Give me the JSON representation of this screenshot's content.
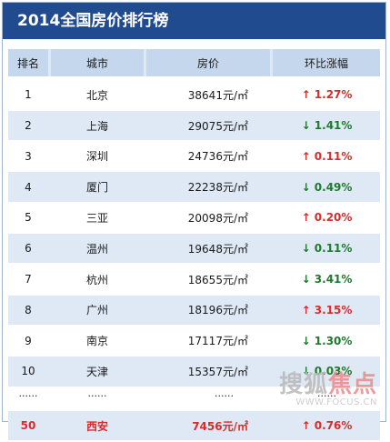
{
  "header": {
    "title": "2014全国房价排行榜"
  },
  "table": {
    "columns": [
      "排名",
      "城市",
      "房价",
      "环比涨幅"
    ],
    "rows": [
      {
        "rank": "1",
        "city": "北京",
        "price": "38641元/㎡",
        "change": "↑ 1.27%",
        "direction": "up"
      },
      {
        "rank": "2",
        "city": "上海",
        "price": "29075元/㎡",
        "change": "↓ 1.41%",
        "direction": "down"
      },
      {
        "rank": "3",
        "city": "深圳",
        "price": "24736元/㎡",
        "change": "↑ 0.11%",
        "direction": "up"
      },
      {
        "rank": "4",
        "city": "厦门",
        "price": "22238元/㎡",
        "change": "↓ 0.49%",
        "direction": "down"
      },
      {
        "rank": "5",
        "city": "三亚",
        "price": "20098元/㎡",
        "change": "↑ 0.20%",
        "direction": "up"
      },
      {
        "rank": "6",
        "city": "温州",
        "price": "19648元/㎡",
        "change": "↓ 0.11%",
        "direction": "down"
      },
      {
        "rank": "7",
        "city": "杭州",
        "price": "18655元/㎡",
        "change": "↓ 3.41%",
        "direction": "down"
      },
      {
        "rank": "8",
        "city": "广州",
        "price": "18196元/㎡",
        "change": "↑ 3.15%",
        "direction": "up"
      },
      {
        "rank": "9",
        "city": "南京",
        "price": "17117元/㎡",
        "change": "↓ 1.30%",
        "direction": "down"
      },
      {
        "rank": "10",
        "city": "天津",
        "price": "15357元/㎡",
        "change": "↓ 0.03%",
        "direction": "down"
      }
    ],
    "ellipsis": [
      "......",
      "......",
      "......",
      "......"
    ],
    "last_row": {
      "rank": "50",
      "city": "西安",
      "price": "7456元/㎡",
      "change": "↑ 0.76%",
      "direction": "up"
    }
  },
  "watermark": {
    "text_a": "搜狐",
    "text_b": "焦点",
    "url": "WWW.FOCUS.CN"
  },
  "colors": {
    "title_bar": "#204c8f",
    "row_alt": "#dfe9f5",
    "header_cell": "#c5d7ed",
    "up": "#d92b2b",
    "down": "#1e7a2d"
  }
}
